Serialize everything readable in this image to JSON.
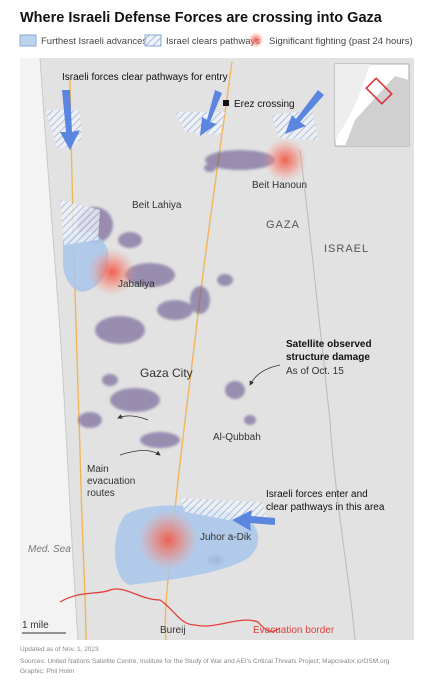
{
  "header": {
    "title": "Where Israeli Defense Forces are crossing into Gaza"
  },
  "legend": {
    "items": [
      "Furthest Israeli advances",
      "Israel clears pathways",
      "Significant fighting (past 24 hours)"
    ]
  },
  "map": {
    "labels": {
      "pathways_entry": "Israeli forces clear pathways for entry",
      "erez": "Erez crossing",
      "beit_hanoun": "Beit Hanoun",
      "beit_lahiya": "Beit Lahiya",
      "gaza": "GAZA",
      "israel": "ISRAEL",
      "jabaliya": "Jabaliya",
      "damage": [
        "Satellite observed",
        "structure damage"
      ],
      "damage_date": "As of Oct. 15",
      "gaza_city": "Gaza City",
      "al_qubbah": "Al-Qubbah",
      "evacuation_routes": [
        "Main",
        "evacuation",
        "routes"
      ],
      "enter_area": [
        "Israeli forces enter and",
        "clear pathways in this area"
      ],
      "juhor": "Juhor a-Dik",
      "med_sea": "Med. Sea",
      "scale": "1 mile",
      "bureij": "Bureij",
      "evacuation_border": "Evacuation border"
    }
  },
  "footer": {
    "updated": "Updated as of Nov. 1, 2023",
    "sources": "Sources: United Nations Satellite Centre; Institute for the Study of War and AEI's Critical Threats Project; Mapcreator.io/OSM.org",
    "credit": "Graphic: Phil Holm"
  }
}
